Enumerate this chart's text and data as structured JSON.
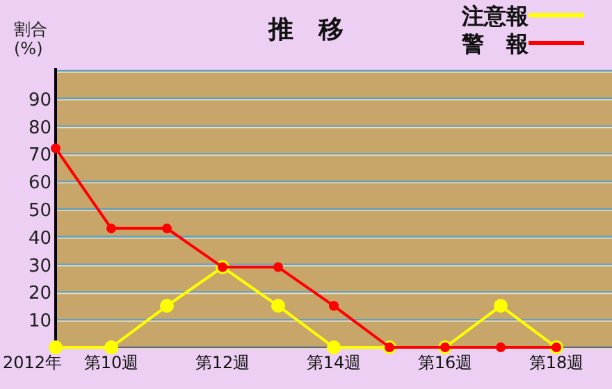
{
  "chart_data": {
    "type": "line",
    "title": "推　移",
    "ylabel": "割合\n(%)",
    "xlabel": "2012年",
    "categories": [
      null,
      "第10週",
      null,
      "第12週",
      null,
      "第14週",
      null,
      "第16週",
      null,
      "第18週"
    ],
    "series": [
      {
        "name": "注意報",
        "color": "#ffff00",
        "values": [
          0,
          0,
          15,
          29,
          15,
          0,
          0,
          0,
          15,
          0
        ]
      },
      {
        "name": "警　報",
        "color": "#ff0000",
        "values": [
          72,
          43,
          43,
          29,
          29,
          15,
          0,
          0,
          0,
          0
        ]
      }
    ],
    "ylim": [
      0,
      100
    ],
    "yticks": [
      {
        "value": 0,
        "label": null
      },
      10,
      20,
      30,
      40,
      50,
      60,
      70,
      80,
      90,
      {
        "value": 100,
        "label": null
      }
    ],
    "grid": "y",
    "legend": "top right",
    "marker": "circle",
    "line_style": "solid"
  }
}
